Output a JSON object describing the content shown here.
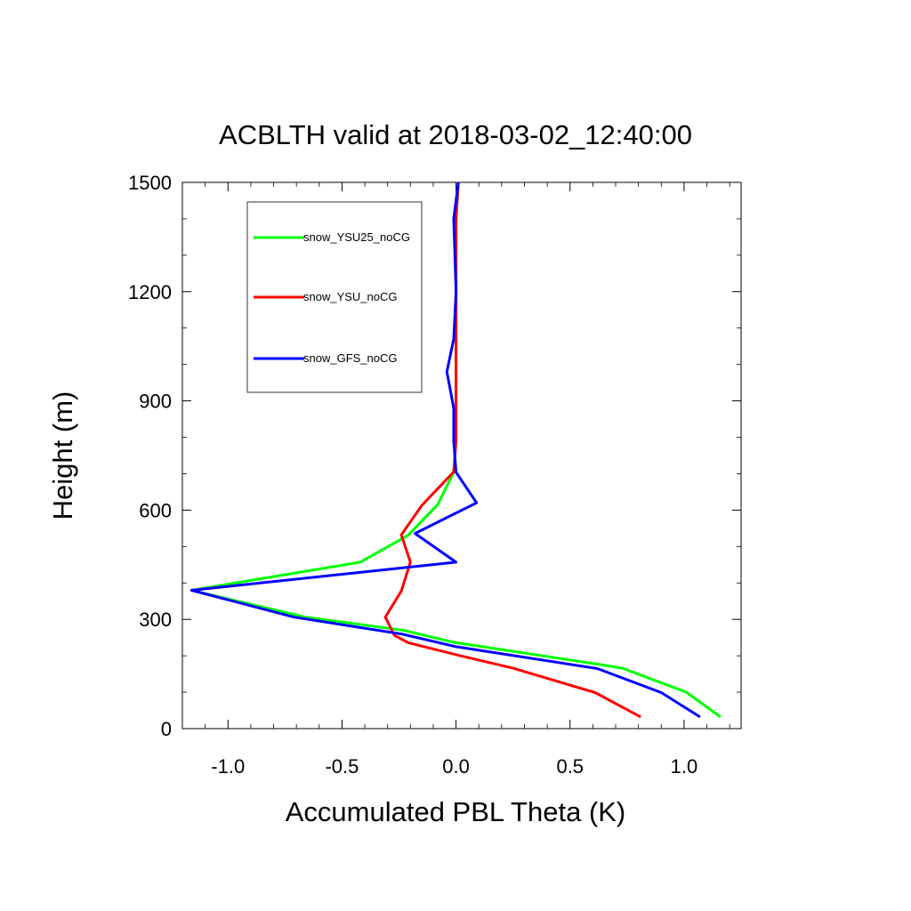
{
  "chart_data": {
    "type": "line",
    "title": "ACBLTH valid at 2018-03-02_12:40:00",
    "xlabel": "Accumulated PBL Theta (K)",
    "ylabel": "Height (m)",
    "xlim": [
      -1.2,
      1.25
    ],
    "ylim": [
      0,
      1500
    ],
    "x_ticks": [
      -1.0,
      -0.5,
      0.0,
      0.5,
      1.0
    ],
    "x_tick_labels": [
      "-1.0",
      "-0.5",
      "0.0",
      "0.5",
      "1.0"
    ],
    "y_ticks": [
      0,
      300,
      600,
      900,
      1200,
      1500
    ],
    "y_tick_labels": [
      "0",
      "300",
      "600",
      "900",
      "1200",
      "1500"
    ],
    "grid": false,
    "legend_position": "top-left",
    "series": [
      {
        "name": "snow_YSU25_noCG",
        "color": "#00ff00",
        "points": [
          [
            1.16,
            32
          ],
          [
            1.01,
            100
          ],
          [
            0.73,
            166
          ],
          [
            0.62,
            177
          ],
          [
            -0.01,
            237
          ],
          [
            -0.23,
            270
          ],
          [
            -0.66,
            306
          ],
          [
            -1.16,
            380
          ],
          [
            -0.42,
            457
          ],
          [
            -0.21,
            531
          ],
          [
            -0.08,
            616
          ],
          [
            -0.01,
            704
          ],
          [
            0.0,
            790
          ],
          [
            0.0,
            900
          ],
          [
            0.0,
            1000
          ],
          [
            0.0,
            1200
          ],
          [
            0.0,
            1400
          ],
          [
            0.01,
            1500
          ]
        ]
      },
      {
        "name": "snow_YSU_noCG",
        "color": "#ff0000",
        "points": [
          [
            0.81,
            32
          ],
          [
            0.61,
            99
          ],
          [
            0.25,
            166
          ],
          [
            0.0,
            203
          ],
          [
            -0.21,
            236
          ],
          [
            -0.27,
            256
          ],
          [
            -0.31,
            306
          ],
          [
            -0.24,
            378
          ],
          [
            -0.2,
            457
          ],
          [
            -0.24,
            532
          ],
          [
            -0.15,
            613
          ],
          [
            -0.01,
            705
          ],
          [
            0.0,
            790
          ],
          [
            0.0,
            900
          ],
          [
            0.0,
            1000
          ],
          [
            0.0,
            1200
          ],
          [
            0.0,
            1400
          ],
          [
            0.01,
            1500
          ]
        ]
      },
      {
        "name": "snow_GFS_noCG",
        "color": "#0000ff",
        "points": [
          [
            1.07,
            32
          ],
          [
            0.9,
            99
          ],
          [
            0.62,
            165
          ],
          [
            0.0,
            225
          ],
          [
            -0.24,
            260
          ],
          [
            -0.71,
            306
          ],
          [
            -1.16,
            380
          ],
          [
            0.0,
            457
          ],
          [
            -0.18,
            536
          ],
          [
            0.09,
            620
          ],
          [
            0.0,
            704
          ],
          [
            -0.01,
            790
          ],
          [
            -0.01,
            880
          ],
          [
            -0.04,
            980
          ],
          [
            -0.01,
            1070
          ],
          [
            0.0,
            1200
          ],
          [
            -0.01,
            1400
          ],
          [
            0.01,
            1500
          ]
        ]
      }
    ]
  }
}
